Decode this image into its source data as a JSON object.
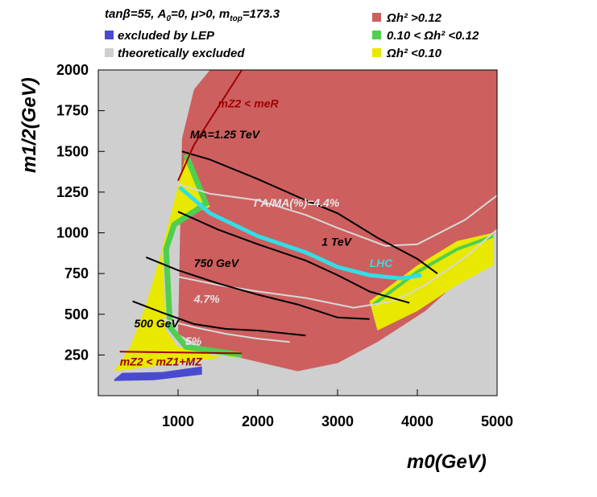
{
  "colors": {
    "relic_high": "#cd5f5f",
    "relic_band": "#4fcf4f",
    "relic_low": "#e8e800",
    "lep": "#4a4acf",
    "theory": "#cfcfcf",
    "lhc": "#33dde8",
    "frame_bg": "#cfcfcf"
  },
  "header": {
    "params_html": "tanβ=55, A₀=0, μ>0, mtop=173.3",
    "params_tanb": "tan",
    "params_beta": "β",
    "params_rest": "=55, A",
    "params_a0sub": "0",
    "params_mu": "=0, μ>0, m",
    "params_topsub": "top",
    "params_mtop": "=173.3"
  },
  "legend": {
    "lep": "excluded by LEP",
    "theory": "theoretically excluded",
    "high": "Ωh² >0.12",
    "band": "0.10 < Ωh² <0.12",
    "low": "Ωh² <0.10"
  },
  "chart_data": {
    "type": "area",
    "title": "tanβ=55, A0=0, μ>0, mtop=173.3",
    "xlabel": "m0(GeV)",
    "ylabel": "m1/2(GeV)",
    "xlim": [
      0,
      5000
    ],
    "ylim": [
      0,
      2000
    ],
    "x_ticks": [
      1000,
      2000,
      3000,
      4000,
      5000
    ],
    "y_ticks": [
      250,
      500,
      750,
      1000,
      1250,
      1500,
      1750,
      2000
    ],
    "x_tick_labels": [
      "1000",
      "2000",
      "3000",
      "4000",
      "5000"
    ],
    "y_tick_labels": [
      "250",
      "500",
      "750",
      "1000",
      "1250",
      "1500",
      "1750",
      "2000"
    ],
    "regions": {
      "relic_high_lower": [
        [
          1050,
          1580
        ],
        [
          1200,
          1880
        ],
        [
          1400,
          2000
        ],
        [
          5000,
          2000
        ],
        [
          5000,
          1020
        ],
        [
          4600,
          740
        ],
        [
          4100,
          520
        ],
        [
          3500,
          330
        ],
        [
          3000,
          200
        ],
        [
          2500,
          150
        ],
        [
          1800,
          230
        ],
        [
          1300,
          300
        ],
        [
          1000,
          380
        ]
      ],
      "relic_low_region": [
        [
          200,
          150
        ],
        [
          400,
          300
        ],
        [
          600,
          560
        ],
        [
          800,
          900
        ],
        [
          1000,
          1290
        ],
        [
          1100,
          1480
        ],
        [
          1400,
          1160
        ],
        [
          1200,
          1120
        ],
        [
          900,
          1020
        ],
        [
          800,
          880
        ],
        [
          850,
          400
        ],
        [
          1000,
          300
        ],
        [
          1600,
          230
        ],
        [
          1800,
          250
        ]
      ],
      "lep_region": [
        [
          200,
          100
        ],
        [
          300,
          140
        ],
        [
          800,
          145
        ],
        [
          1300,
          180
        ],
        [
          1300,
          130
        ],
        [
          700,
          95
        ],
        [
          200,
          90
        ]
      ],
      "right_band": [
        [
          3400,
          580
        ],
        [
          4000,
          800
        ],
        [
          4500,
          950
        ],
        [
          4950,
          1000
        ],
        [
          4950,
          800
        ],
        [
          4500,
          680
        ],
        [
          4000,
          520
        ],
        [
          3500,
          400
        ]
      ]
    },
    "contours": [
      {
        "name": "MA=1.25 TeV",
        "label": "M_A=1.25 TeV",
        "points": [
          [
            1050,
            1500
          ],
          [
            1400,
            1450
          ],
          [
            2000,
            1330
          ],
          [
            2600,
            1200
          ],
          [
            3000,
            1120
          ],
          [
            3500,
            970
          ],
          [
            4000,
            840
          ],
          [
            4250,
            750
          ]
        ]
      },
      {
        "name": "MA=1 TeV",
        "label": "1 TeV",
        "points": [
          [
            1000,
            1130
          ],
          [
            1500,
            1020
          ],
          [
            2000,
            930
          ],
          [
            2600,
            830
          ],
          [
            3000,
            740
          ],
          [
            3400,
            640
          ],
          [
            3900,
            570
          ]
        ]
      },
      {
        "name": "MA=750 GeV",
        "label": "750 GeV",
        "points": [
          [
            600,
            850
          ],
          [
            1000,
            770
          ],
          [
            1500,
            690
          ],
          [
            2000,
            620
          ],
          [
            2500,
            560
          ],
          [
            3000,
            480
          ],
          [
            3400,
            470
          ]
        ]
      },
      {
        "name": "MA=500 GeV",
        "label": "500 GeV",
        "points": [
          [
            430,
            580
          ],
          [
            800,
            510
          ],
          [
            1200,
            440
          ],
          [
            1600,
            410
          ],
          [
            2000,
            400
          ],
          [
            2400,
            380
          ],
          [
            2600,
            370
          ]
        ]
      }
    ],
    "width_contours": [
      {
        "name": "ΓA/MA=4.4%",
        "label": "Γ_A/M_A(%)=4.4%",
        "points": [
          [
            1000,
            1300
          ],
          [
            1400,
            1240
          ],
          [
            2000,
            1200
          ],
          [
            2600,
            1110
          ],
          [
            3000,
            1030
          ],
          [
            3600,
            920
          ],
          [
            4000,
            930
          ],
          [
            4600,
            1080
          ],
          [
            5000,
            1230
          ]
        ]
      },
      {
        "name": "4.7%",
        "label": "4.7%",
        "points": [
          [
            1000,
            730
          ],
          [
            1500,
            680
          ],
          [
            2000,
            640
          ],
          [
            2600,
            600
          ],
          [
            3200,
            540
          ],
          [
            3700,
            580
          ],
          [
            4100,
            680
          ],
          [
            4600,
            850
          ],
          [
            5000,
            1020
          ]
        ]
      },
      {
        "name": "5%",
        "label": "5%",
        "points": [
          [
            800,
            470
          ],
          [
            1200,
            420
          ],
          [
            1600,
            380
          ],
          [
            2000,
            350
          ],
          [
            2400,
            330
          ]
        ]
      }
    ],
    "lhc_reach": {
      "label": "LHC",
      "points": [
        [
          1020,
          1280
        ],
        [
          1400,
          1120
        ],
        [
          2000,
          980
        ],
        [
          2600,
          880
        ],
        [
          3000,
          790
        ],
        [
          3400,
          740
        ],
        [
          3800,
          720
        ],
        [
          4050,
          740
        ]
      ]
    },
    "kinematic_lines": [
      {
        "name": "mZ2 < meR",
        "label": "m_Z2 < m_eR",
        "points": [
          [
            1000,
            1320
          ],
          [
            1200,
            1540
          ],
          [
            1800,
            2000
          ]
        ]
      },
      {
        "name": "mZ2 < mZ1+MZ",
        "label": "m_Z2 < m_Z1+M_Z",
        "points": [
          [
            270,
            270
          ],
          [
            1800,
            260
          ]
        ]
      }
    ],
    "annotations": {
      "ma125": "MA=1.25 TeV",
      "ma1": "1 TeV",
      "ma750": "750 GeV",
      "ma500": "500 GeV",
      "width44": "ΓA/MA(%)=4.4%",
      "width47": "4.7%",
      "width5": "5%",
      "lhc": "LHC",
      "mz2_mer": "mZ2 < meR",
      "mz2_mz1": "mZ2 < mZ1+MZ"
    }
  }
}
